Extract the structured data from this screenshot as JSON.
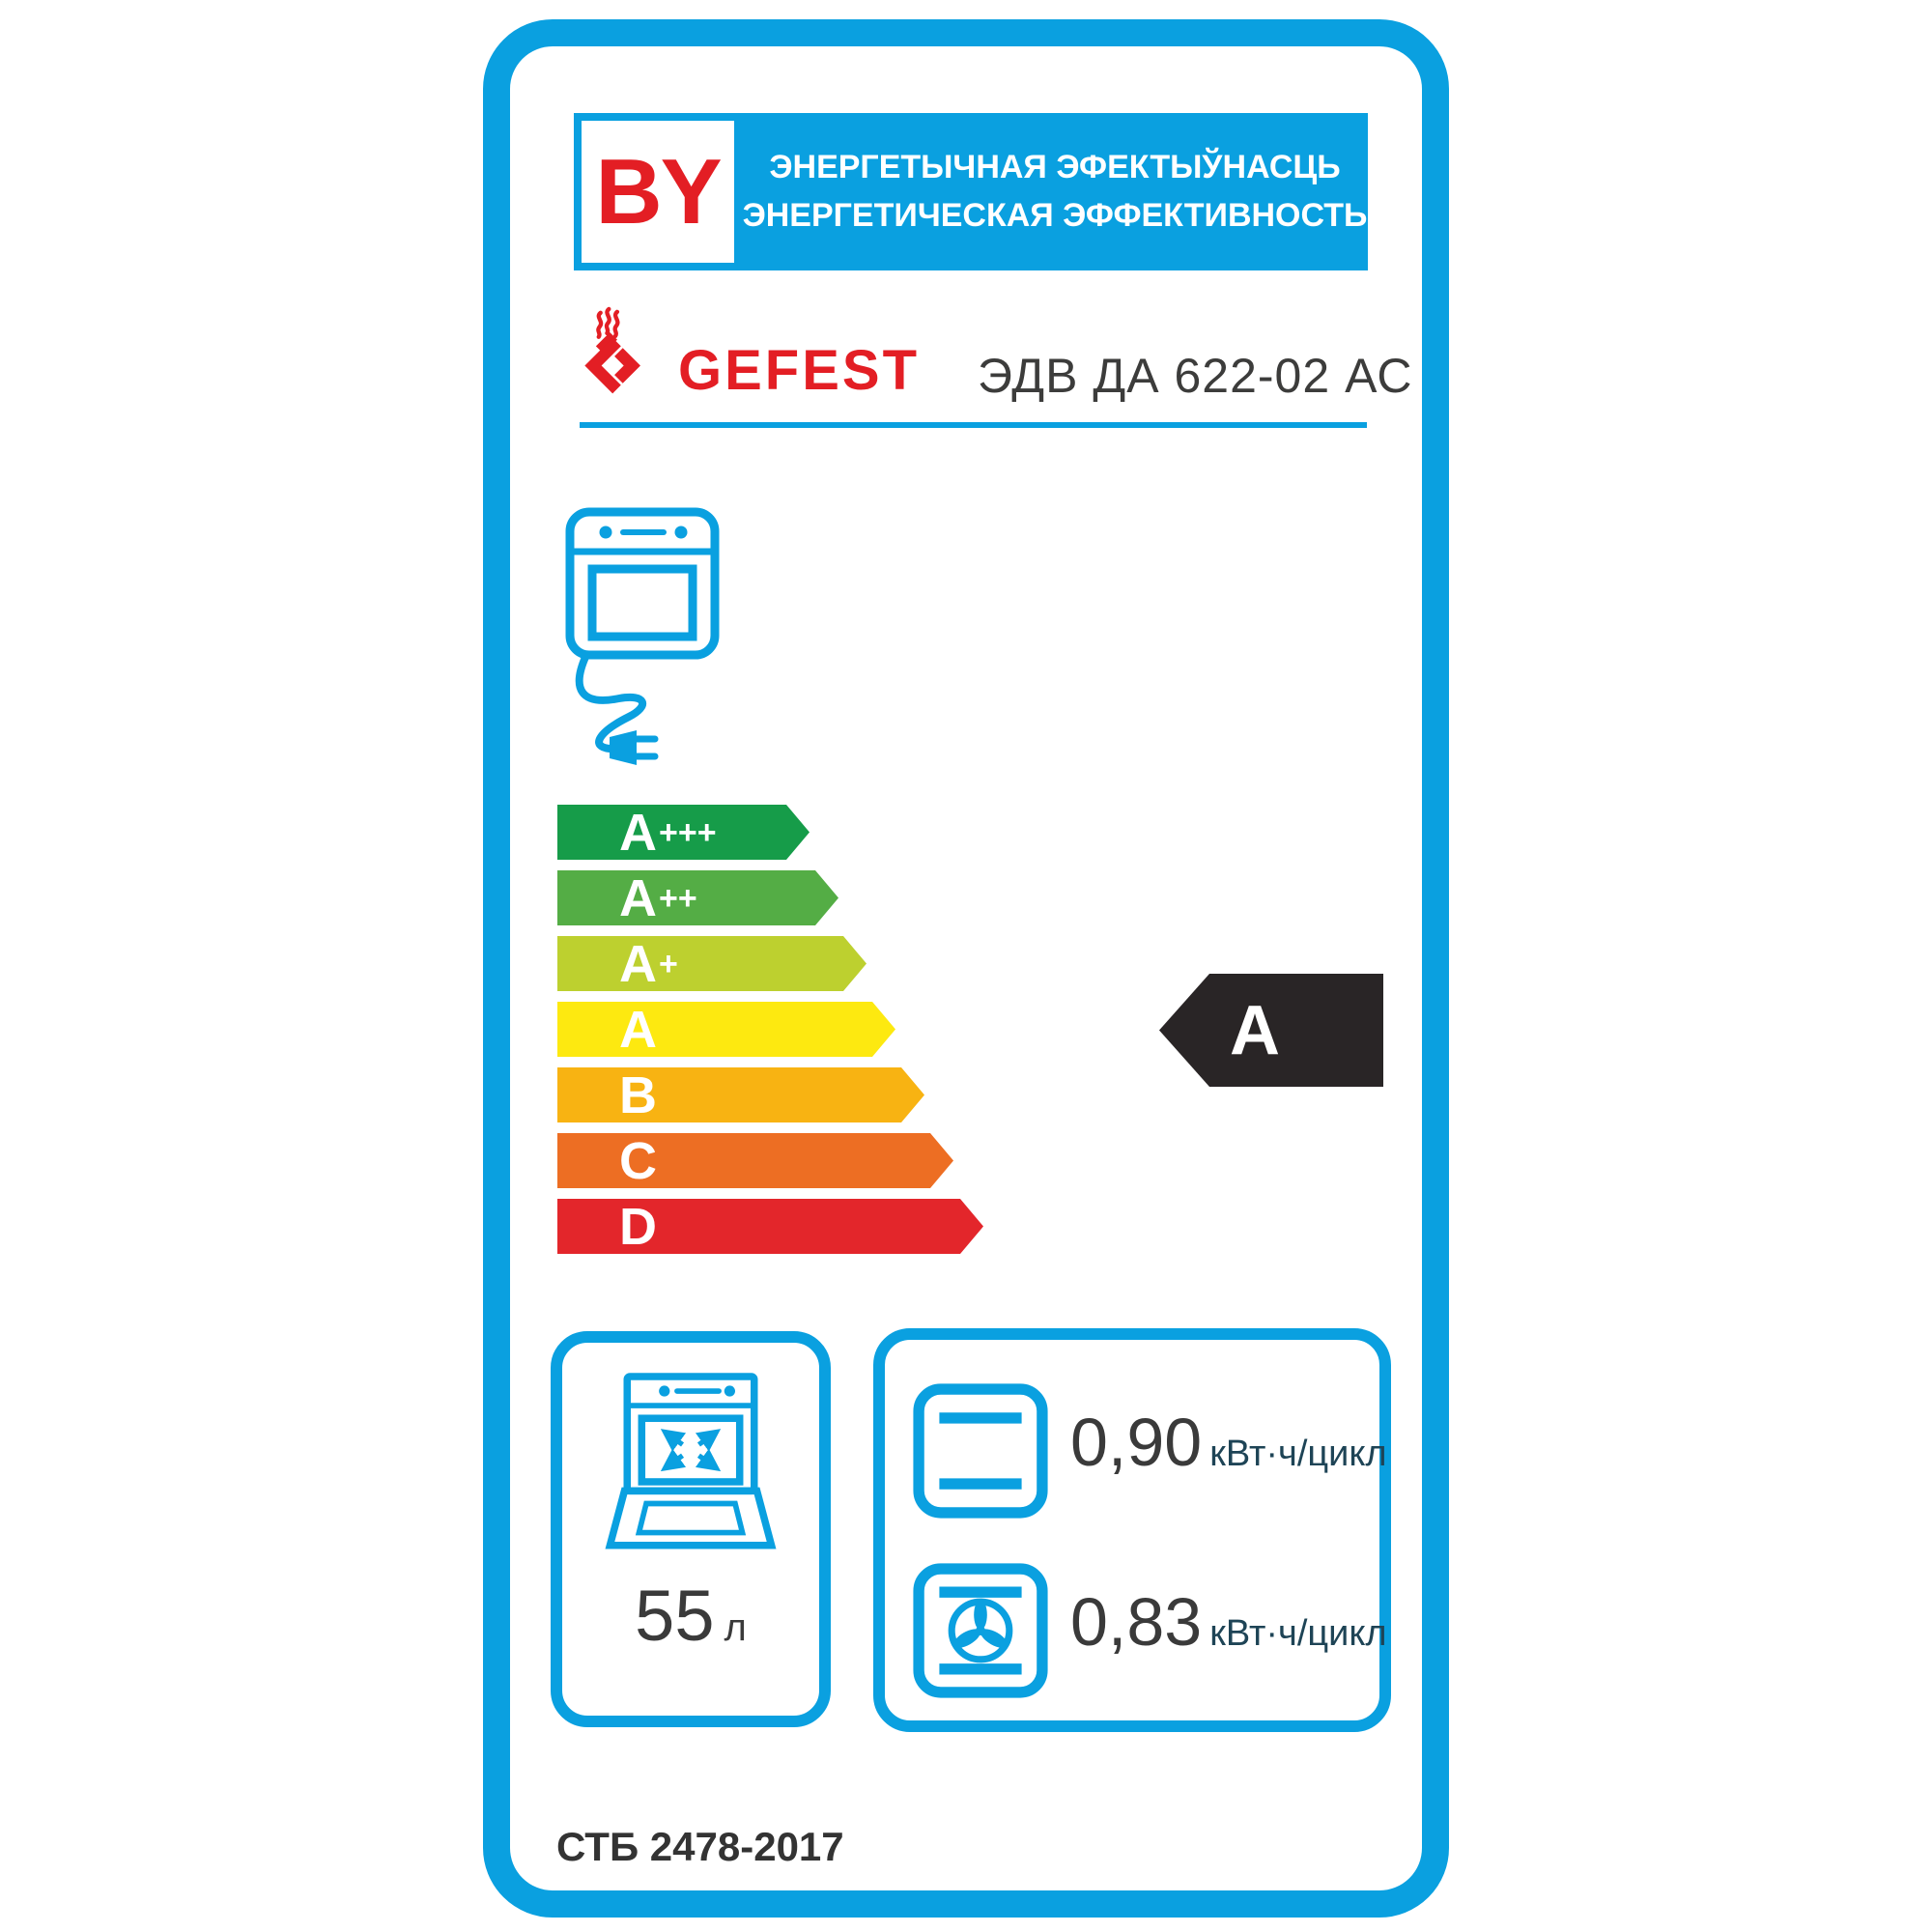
{
  "header": {
    "country_code": "BY",
    "title_line1": "ЭНЕРГЕТЫЧНАЯ ЭФЕКТЫЎНАСЦЬ",
    "title_line2": "ЭНЕРГЕТИЧЕСКАЯ ЭФФЕКТИВНОСТЬ"
  },
  "brand": {
    "name": "GEFEST",
    "model": "ЭДВ ДА 622-02 АС"
  },
  "rating_scale": [
    {
      "label": "A+++",
      "color": "#169c49",
      "length": 261
    },
    {
      "label": "A++",
      "color": "#54ad45",
      "length": 291
    },
    {
      "label": "A+",
      "color": "#bdd02f",
      "length": 320
    },
    {
      "label": "A",
      "color": "#fde910",
      "length": 350
    },
    {
      "label": "B",
      "color": "#f8b312",
      "length": 380
    },
    {
      "label": "C",
      "color": "#ed6e23",
      "length": 410
    },
    {
      "label": "D",
      "color": "#e3262b",
      "length": 441
    }
  ],
  "rating": {
    "value": "A"
  },
  "specs": {
    "volume": {
      "value": "55",
      "unit": "л"
    },
    "energy_conventional": {
      "value": "0,90",
      "unit": "кВт·ч/цикл"
    },
    "energy_convection": {
      "value": "0,83",
      "unit": "кВт·ч/цикл"
    }
  },
  "standard": "СТБ 2478-2017",
  "colors": {
    "frame_blue": "#0aa0e0",
    "brand_red": "#e31e24",
    "rating_black": "#292526",
    "text_dark": "#3a3a3a",
    "unit_navy": "#1e4456"
  }
}
